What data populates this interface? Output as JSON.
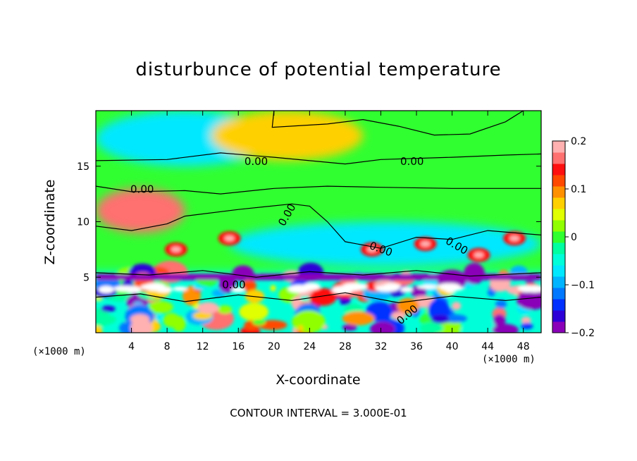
{
  "chart_data": {
    "type": "heatmap",
    "title": "disturbunce of potential temperature",
    "xlabel": "X-coordinate",
    "ylabel": "Z-coordinate",
    "x_unit": "(×1000 m)",
    "y_unit": "(×1000 m)",
    "xlim": [
      0,
      50
    ],
    "ylim": [
      0,
      20
    ],
    "x_ticks": [
      4,
      8,
      12,
      16,
      20,
      24,
      28,
      32,
      36,
      40,
      44,
      48
    ],
    "y_ticks": [
      5,
      10,
      15
    ],
    "colorbar": {
      "range": [
        -0.2,
        0.2
      ],
      "tick_values": [
        0.2,
        0.1,
        0,
        -0.1,
        -0.2
      ],
      "tick_labels": [
        "0.2",
        "0.1",
        "0",
        "−0.1",
        "−0.2"
      ],
      "colors": [
        "#8a00b8",
        "#2d00d8",
        "#0030ff",
        "#0078ff",
        "#00b4ff",
        "#00e8ff",
        "#00ffd8",
        "#00ffa0",
        "#30ff30",
        "#90ff00",
        "#e0ff00",
        "#ffd000",
        "#ff9000",
        "#ff4800",
        "#ff1010",
        "#ff7070",
        "#ffb0b0"
      ]
    },
    "contour_labels": [
      "0.00",
      "0.00",
      "0.00",
      "0.00",
      "0.00",
      "0.00",
      "0.00",
      "0.00"
    ],
    "regions": [
      {
        "x": [
          0,
          50
        ],
        "y": [
          0,
          5.5
        ],
        "value": -0.05,
        "note": "turbulent layer"
      },
      {
        "x": [
          0,
          20
        ],
        "y": [
          15,
          20
        ],
        "value": -0.06
      },
      {
        "x": [
          13,
          30
        ],
        "y": [
          15.5,
          20
        ],
        "value": 0.08
      },
      {
        "x": [
          0,
          10
        ],
        "y": [
          9,
          13
        ],
        "value": 0.16
      },
      {
        "x": [
          15,
          50
        ],
        "y": [
          6,
          10
        ],
        "value": -0.06
      }
    ],
    "grid": false
  },
  "footnote": "CONTOUR INTERVAL = 3.000E-01"
}
